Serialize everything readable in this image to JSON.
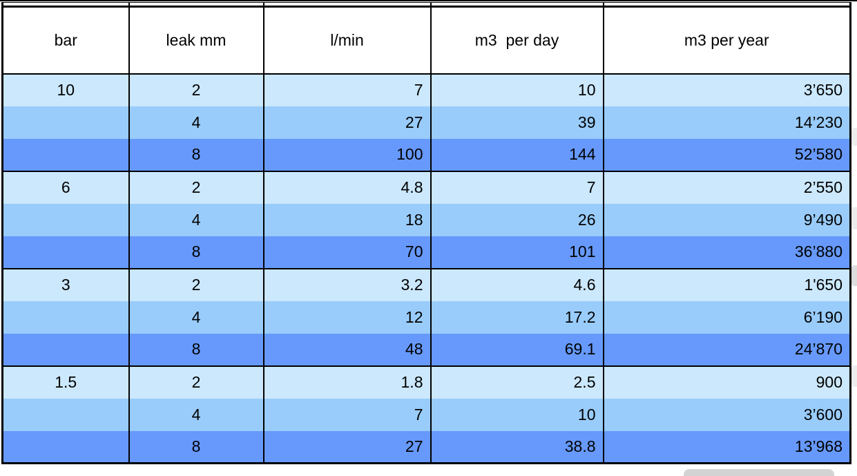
{
  "table": {
    "columns": [
      {
        "label": "bar",
        "align": "center"
      },
      {
        "label": "leak mm",
        "align": "center"
      },
      {
        "label": "l/min",
        "align": "right"
      },
      {
        "label": "m3  per day",
        "align": "right"
      },
      {
        "label": "m3 per year",
        "align": "right"
      }
    ],
    "rows": [
      {
        "shade": "light",
        "group_end": false,
        "cells": [
          "10",
          "2",
          "7",
          "10",
          "3’650"
        ]
      },
      {
        "shade": "medium",
        "group_end": false,
        "cells": [
          "",
          "4",
          "27",
          "39",
          "14’230"
        ]
      },
      {
        "shade": "dark",
        "group_end": true,
        "cells": [
          "",
          "8",
          "100",
          "144",
          "52’580"
        ]
      },
      {
        "shade": "light",
        "group_end": false,
        "cells": [
          "6",
          "2",
          "4.8",
          "7",
          "2’550"
        ]
      },
      {
        "shade": "medium",
        "group_end": false,
        "cells": [
          "",
          "4",
          "18",
          "26",
          "9’490"
        ]
      },
      {
        "shade": "dark",
        "group_end": true,
        "cells": [
          "",
          "8",
          "70",
          "101",
          "36’880"
        ]
      },
      {
        "shade": "light",
        "group_end": false,
        "cells": [
          "3",
          "2",
          "3.2",
          "4.6",
          "1'650"
        ]
      },
      {
        "shade": "medium",
        "group_end": false,
        "cells": [
          "",
          "4",
          "12",
          "17.2",
          "6’190"
        ]
      },
      {
        "shade": "dark",
        "group_end": true,
        "cells": [
          "",
          "8",
          "48",
          "69.1",
          "24’870"
        ]
      },
      {
        "shade": "light",
        "group_end": false,
        "cells": [
          "1.5",
          "2",
          "1.8",
          "2.5",
          "900"
        ]
      },
      {
        "shade": "medium",
        "group_end": false,
        "cells": [
          "",
          "4",
          "7",
          "10",
          "3’600"
        ]
      },
      {
        "shade": "dark",
        "group_end": false,
        "cells": [
          "",
          "8",
          "27",
          "38.8",
          "13’968"
        ]
      }
    ]
  },
  "colors": {
    "row_light": "#CBE8FC",
    "row_medium": "#99CCFB",
    "row_dark": "#6699FB",
    "border": "#000000",
    "artifact_gray": "#D3D3D3"
  },
  "chart_data": {
    "type": "table",
    "title": "",
    "columns": [
      "bar",
      "leak mm",
      "l/min",
      "m3 per day",
      "m3 per year"
    ],
    "rows": [
      [
        "10",
        "2",
        "7",
        "10",
        "3’650"
      ],
      [
        "",
        "4",
        "27",
        "39",
        "14’230"
      ],
      [
        "",
        "8",
        "100",
        "144",
        "52’580"
      ],
      [
        "6",
        "2",
        "4.8",
        "7",
        "2’550"
      ],
      [
        "",
        "4",
        "18",
        "26",
        "9’490"
      ],
      [
        "",
        "8",
        "70",
        "101",
        "36’880"
      ],
      [
        "3",
        "2",
        "3.2",
        "4.6",
        "1'650"
      ],
      [
        "",
        "4",
        "12",
        "17.2",
        "6’190"
      ],
      [
        "",
        "8",
        "48",
        "69.1",
        "24’870"
      ],
      [
        "1.5",
        "2",
        "1.8",
        "2.5",
        "900"
      ],
      [
        "",
        "4",
        "7",
        "10",
        "3’600"
      ],
      [
        "",
        "8",
        "27",
        "38.8",
        "13’968"
      ]
    ]
  }
}
